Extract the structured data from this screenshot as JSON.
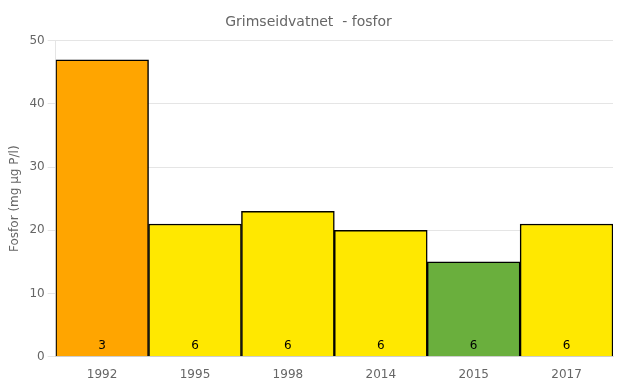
{
  "chart_data": {
    "type": "bar",
    "title": "Grimseidvatnet  - fosfor",
    "ylabel": "Fosfor (mg μg P/l)",
    "categories": [
      "1992",
      "1995",
      "1998",
      "2014",
      "2015",
      "2017"
    ],
    "values": [
      47,
      21,
      23,
      20,
      15,
      21
    ],
    "colors": [
      "#FFA500",
      "#FFE800",
      "#FFE800",
      "#FFE800",
      "#6AAF3D",
      "#FFE800"
    ],
    "annotations": [
      "3",
      "6",
      "6",
      "6",
      "6",
      "6"
    ],
    "ylim": [
      0,
      50
    ],
    "yticks": [
      0,
      10,
      20,
      30,
      40,
      50
    ],
    "grid": true
  }
}
